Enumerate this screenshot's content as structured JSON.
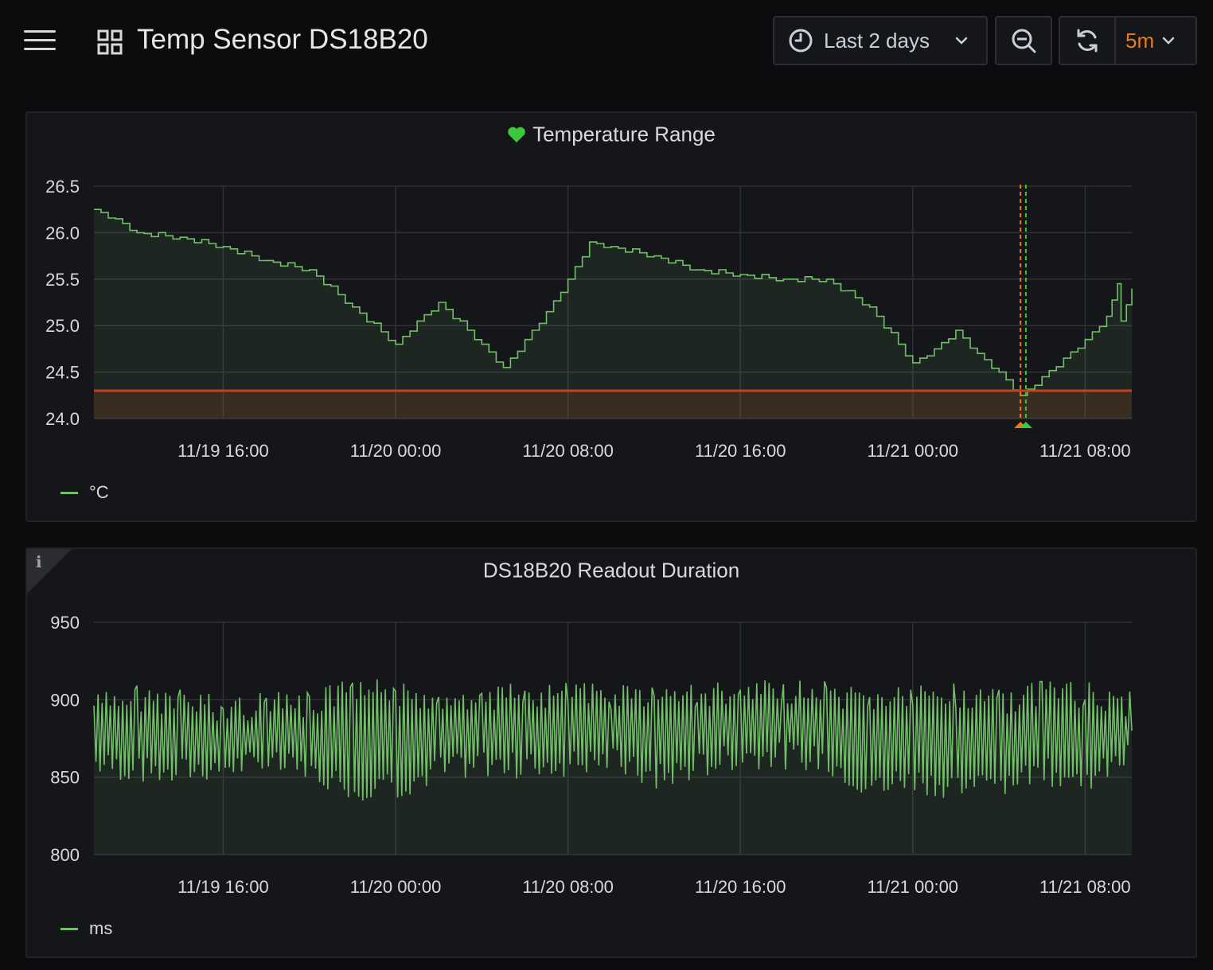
{
  "header": {
    "title": "Temp Sensor DS18B20",
    "time_range": "Last 2 days",
    "refresh_interval": "5m"
  },
  "colors": {
    "series": "#73bf69",
    "threshold": "#c4401e",
    "annotation_orange": "#eb7b18",
    "annotation_green": "#3dc73d",
    "accent": "#eb7b18"
  },
  "panels": [
    {
      "title": "Temperature Range",
      "status": "heart-ok-icon",
      "legend": "°C"
    },
    {
      "title": "DS18B20 Readout Duration",
      "info_icon": "i",
      "legend": "ms"
    }
  ],
  "chart_data": [
    {
      "type": "area",
      "title": "Temperature Range",
      "x_type": "time",
      "x_range": [
        "11/19 10:00",
        "11/21 10:10"
      ],
      "x_ticks": [
        "11/19 16:00",
        "11/20 00:00",
        "11/20 08:00",
        "11/20 16:00",
        "11/21 00:00",
        "11/21 08:00"
      ],
      "y_ticks": [
        "26.5",
        "26.0",
        "25.5",
        "25.0",
        "24.5",
        "24.0"
      ],
      "ylim": [
        24.0,
        26.5
      ],
      "threshold": 24.3,
      "annotations": [
        "11/21 05:00",
        "11/21 05:15"
      ],
      "grid": true,
      "legend_position": "bottom-left",
      "series": [
        {
          "name": "°C",
          "x": [
            "11/19 10:00",
            "11/19 11:00",
            "11/19 12:00",
            "11/19 14:00",
            "11/19 16:00",
            "11/19 18:00",
            "11/19 20:00",
            "11/19 22:00",
            "11/20 00:00",
            "11/20 01:00",
            "11/20 02:00",
            "11/20 04:00",
            "11/20 05:00",
            "11/20 06:00",
            "11/20 07:00",
            "11/20 08:00",
            "11/20 09:00",
            "11/20 10:00",
            "11/20 12:00",
            "11/20 14:00",
            "11/20 16:00",
            "11/20 18:00",
            "11/20 20:00",
            "11/20 22:00",
            "11/21 00:00",
            "11/21 01:00",
            "11/21 02:00",
            "11/21 03:00",
            "11/21 04:00",
            "11/21 05:00",
            "11/21 06:00",
            "11/21 07:00",
            "11/21 08:00",
            "11/21 09:00",
            "11/21 09:30",
            "11/21 09:40",
            "11/21 10:10"
          ],
          "y": [
            26.25,
            26.15,
            26.0,
            25.95,
            25.85,
            25.7,
            25.6,
            25.2,
            24.8,
            25.05,
            25.25,
            24.8,
            24.55,
            24.85,
            25.15,
            25.5,
            25.9,
            25.85,
            25.75,
            25.6,
            25.55,
            25.5,
            25.5,
            25.2,
            24.6,
            24.75,
            24.95,
            24.7,
            24.5,
            24.25,
            24.45,
            24.65,
            24.85,
            25.1,
            25.45,
            25.05,
            25.4
          ]
        }
      ]
    },
    {
      "type": "area",
      "title": "DS18B20 Readout Duration",
      "x_type": "time",
      "x_range": [
        "11/19 10:00",
        "11/21 10:10"
      ],
      "x_ticks": [
        "11/19 16:00",
        "11/20 00:00",
        "11/20 08:00",
        "11/20 16:00",
        "11/21 00:00",
        "11/21 08:00"
      ],
      "y_ticks": [
        "950",
        "900",
        "850",
        "800"
      ],
      "ylim": [
        800,
        950
      ],
      "grid": true,
      "legend_position": "bottom-left",
      "series": [
        {
          "name": "ms",
          "x": [
            "11/19 10:00",
            "11/19 12:00",
            "11/19 14:00",
            "11/19 16:00",
            "11/19 18:00",
            "11/19 20:00",
            "11/19 22:00",
            "11/20 00:00",
            "11/20 02:00",
            "11/20 04:00",
            "11/20 06:00",
            "11/20 08:00",
            "11/20 10:00",
            "11/20 12:00",
            "11/20 14:00",
            "11/20 16:00",
            "11/20 18:00",
            "11/20 20:00",
            "11/20 22:00",
            "11/21 00:00",
            "11/21 02:00",
            "11/21 04:00",
            "11/21 06:00",
            "11/21 08:00",
            "11/21 10:10"
          ],
          "min": [
            850,
            845,
            845,
            848,
            850,
            845,
            835,
            835,
            845,
            850,
            848,
            850,
            852,
            840,
            848,
            855,
            855,
            852,
            835,
            840,
            835,
            838,
            845,
            838,
            855
          ],
          "max": [
            905,
            910,
            908,
            903,
            905,
            905,
            915,
            912,
            910,
            912,
            910,
            912,
            910,
            913,
            912,
            912,
            913,
            912,
            910,
            910,
            912,
            908,
            912,
            912,
            905
          ]
        }
      ]
    }
  ]
}
